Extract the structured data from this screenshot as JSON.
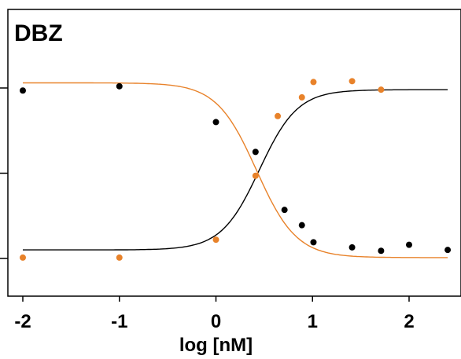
{
  "chart_data": {
    "type": "scatter",
    "title": "DBZ",
    "xlabel": "log [nM]",
    "ylabel": "",
    "xlim": [
      -2.1,
      2.45
    ],
    "ylim": [
      -0.45,
      2.9
    ],
    "xticks": [
      -2,
      -1,
      0,
      1,
      2
    ],
    "xtick_labels": [
      "-2",
      "-1",
      "0",
      "1",
      "2"
    ],
    "yticks": [
      0,
      1,
      2
    ],
    "grid": false,
    "legend": "none",
    "colors": {
      "black": "#000000",
      "orange": "#E8822A",
      "frame": "#000000"
    },
    "series": [
      {
        "color": "#000000",
        "x": [
          -2.0,
          -1.0,
          0.0,
          0.41,
          0.71,
          0.89,
          1.01,
          1.41,
          1.71,
          2.0,
          2.4
        ],
        "y": [
          1.97,
          2.02,
          1.6,
          1.25,
          0.57,
          0.39,
          0.19,
          0.13,
          0.09,
          0.16,
          0.1
        ],
        "fit": {
          "model": "4PL",
          "top": 1.98,
          "bottom": 0.1,
          "ec50_log": 0.45,
          "hill": -2.2
        }
      },
      {
        "color": "#E8822A",
        "x": [
          -2.0,
          -1.0,
          0.0,
          0.41,
          0.64,
          0.89,
          1.01,
          1.41,
          1.71
        ],
        "y": [
          0.01,
          0.01,
          0.22,
          0.97,
          1.67,
          1.89,
          2.07,
          2.08,
          1.98
        ],
        "fit": {
          "model": "4PL",
          "top": 2.06,
          "bottom": 0.01,
          "ec50_log": 0.42,
          "hill": 2.1
        }
      }
    ]
  }
}
